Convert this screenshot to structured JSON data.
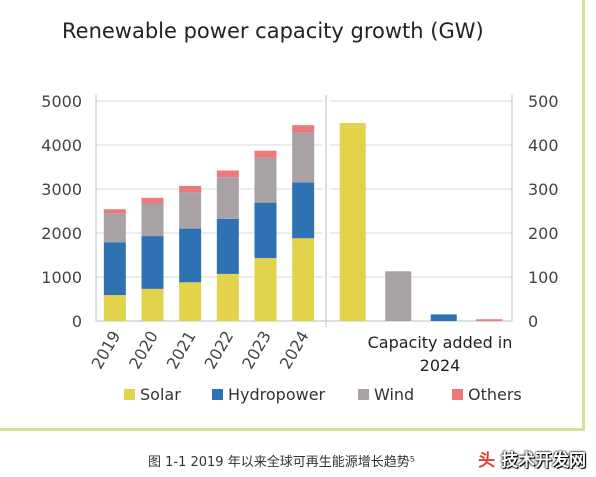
{
  "chart_data": [
    {
      "type": "bar",
      "stacked": true,
      "title": "Renewable power capacity growth (GW)",
      "categories": [
        "2019",
        "2020",
        "2021",
        "2022",
        "2023",
        "2024"
      ],
      "ylim": [
        0,
        5000
      ],
      "yticks": [
        0,
        1000,
        2000,
        3000,
        4000,
        5000
      ],
      "grid": true,
      "legend_position": "bottom",
      "series": [
        {
          "name": "Solar",
          "color": "#e3d24c",
          "values": [
            590,
            730,
            880,
            1070,
            1430,
            1880
          ]
        },
        {
          "name": "Hydropower",
          "color": "#2f72b4",
          "values": [
            1200,
            1200,
            1220,
            1250,
            1260,
            1270
          ]
        },
        {
          "name": "Wind",
          "color": "#a8a2a5",
          "values": [
            650,
            740,
            830,
            950,
            1020,
            1130
          ]
        },
        {
          "name": "Others",
          "color": "#ea7a7c",
          "values": [
            100,
            130,
            140,
            150,
            160,
            170
          ]
        }
      ]
    },
    {
      "type": "bar",
      "title": "Capacity added in 2024",
      "categories": [
        "Solar",
        "Wind",
        "Hydropower",
        "Others"
      ],
      "values": [
        450,
        113,
        15,
        4
      ],
      "colors": [
        "#e3d24c",
        "#a8a2a5",
        "#2f72b4",
        "#ea7a7c"
      ],
      "ylim": [
        0,
        500
      ],
      "yticks": [
        0,
        100,
        200,
        300,
        400,
        500
      ],
      "xlabel": "Capacity added in 2024"
    }
  ],
  "caption": "图 1-1 2019 年以来全球可再生能源增长趋势⁵",
  "watermark": {
    "lead": "头",
    "text": "技术开发网"
  }
}
